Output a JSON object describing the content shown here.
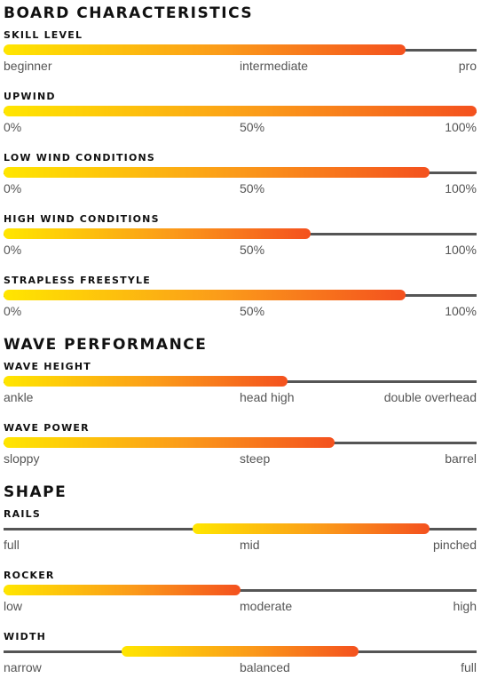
{
  "sections": [
    {
      "title": "BOARD CHARACTERISTICS",
      "items": [
        {
          "label": "SKILL LEVEL",
          "scale": [
            "beginner",
            "intermediate",
            "pro"
          ],
          "range": [
            0,
            85
          ]
        },
        {
          "label": "UPWIND",
          "scale": [
            "0%",
            "50%",
            "100%"
          ],
          "range": [
            0,
            100
          ]
        },
        {
          "label": "LOW WIND CONDITIONS",
          "scale": [
            "0%",
            "50%",
            "100%"
          ],
          "range": [
            0,
            90
          ]
        },
        {
          "label": "HIGH WIND CONDITIONS",
          "scale": [
            "0%",
            "50%",
            "100%"
          ],
          "range": [
            0,
            65
          ]
        },
        {
          "label": "STRAPLESS FREESTYLE",
          "scale": [
            "0%",
            "50%",
            "100%"
          ],
          "range": [
            0,
            85
          ]
        }
      ]
    },
    {
      "title": "WAVE PERFORMANCE",
      "items": [
        {
          "label": "WAVE HEIGHT",
          "scale": [
            "ankle",
            "head high",
            "double overhead"
          ],
          "range": [
            0,
            60
          ]
        },
        {
          "label": "WAVE POWER",
          "scale": [
            "sloppy",
            "steep",
            "barrel"
          ],
          "range": [
            0,
            70
          ]
        }
      ]
    },
    {
      "title": "SHAPE",
      "items": [
        {
          "label": "RAILS",
          "scale": [
            "full",
            "mid",
            "pinched"
          ],
          "range": [
            40,
            90
          ]
        },
        {
          "label": "ROCKER",
          "scale": [
            "low",
            "moderate",
            "high"
          ],
          "range": [
            0,
            50
          ]
        },
        {
          "label": "WIDTH",
          "scale": [
            "narrow",
            "balanced",
            "full"
          ],
          "range": [
            25,
            75
          ]
        }
      ]
    }
  ]
}
